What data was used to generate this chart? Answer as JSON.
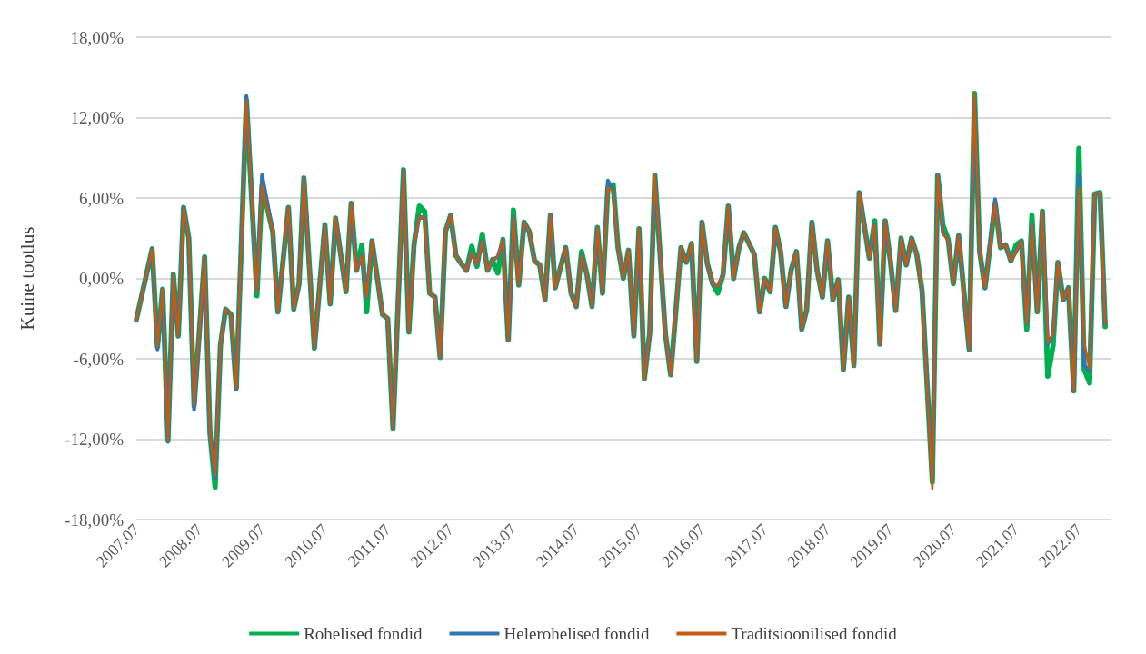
{
  "chart_data": {
    "type": "line",
    "ylabel": "Kuine tootlus",
    "x": [
      "2007-07",
      "2007-10",
      "2007-11",
      "2007-12",
      "2008-01",
      "2008-02",
      "2008-03",
      "2008-04",
      "2008-05",
      "2008-06",
      "2008-08",
      "2008-09",
      "2008-10",
      "2008-11",
      "2008-12",
      "2009-01",
      "2009-02",
      "2009-04",
      "2009-06",
      "2009-07",
      "2009-09",
      "2009-10",
      "2009-12",
      "2010-01",
      "2010-02",
      "2010-03",
      "2010-05",
      "2010-07",
      "2010-08",
      "2010-09",
      "2010-11",
      "2010-12",
      "2011-01",
      "2011-02",
      "2011-03",
      "2011-04",
      "2011-06",
      "2011-07",
      "2011-08",
      "2011-10",
      "2011-11",
      "2011-12",
      "2012-01",
      "2012-02",
      "2012-03",
      "2012-04",
      "2012-05",
      "2012-06",
      "2012-07",
      "2012-08",
      "2012-09",
      "2012-10",
      "2012-11",
      "2012-12",
      "2013-01",
      "2013-02",
      "2013-03",
      "2013-04",
      "2013-05",
      "2013-06",
      "2013-07",
      "2013-08",
      "2013-09",
      "2013-10",
      "2013-11",
      "2013-12",
      "2014-01",
      "2014-02",
      "2014-03",
      "2014-05",
      "2014-06",
      "2014-07",
      "2014-08",
      "2014-09",
      "2014-10",
      "2014-11",
      "2014-12",
      "2015-01",
      "2015-02",
      "2015-03",
      "2015-04",
      "2015-05",
      "2015-06",
      "2015-07",
      "2015-08",
      "2015-09",
      "2015-10",
      "2015-12",
      "2016-01",
      "2016-03",
      "2016-04",
      "2016-05",
      "2016-06",
      "2016-07",
      "2016-08",
      "2016-09",
      "2016-10",
      "2016-11",
      "2016-12",
      "2017-01",
      "2017-02",
      "2017-03",
      "2017-05",
      "2017-06",
      "2017-07",
      "2017-08",
      "2017-09",
      "2017-10",
      "2017-11",
      "2017-12",
      "2018-01",
      "2018-02",
      "2018-03",
      "2018-04",
      "2018-05",
      "2018-06",
      "2018-07",
      "2018-08",
      "2018-09",
      "2018-10",
      "2018-11",
      "2018-12",
      "2019-01",
      "2019-03",
      "2019-04",
      "2019-05",
      "2019-06",
      "2019-07",
      "2019-08",
      "2019-09",
      "2019-10",
      "2019-11",
      "2019-12",
      "2020-01",
      "2020-03",
      "2020-04",
      "2020-05",
      "2020-06",
      "2020-07",
      "2020-08",
      "2020-10",
      "2020-11",
      "2020-12",
      "2021-01",
      "2021-03",
      "2021-04",
      "2021-05",
      "2021-06",
      "2021-07",
      "2021-08",
      "2021-09",
      "2021-10",
      "2021-11",
      "2021-12",
      "2022-01",
      "2022-02",
      "2022-03",
      "2022-04",
      "2022-05",
      "2022-06",
      "2022-07",
      "2022-08",
      "2022-09",
      "2022-10",
      "2022-11",
      "2022-12"
    ],
    "series": [
      {
        "name": "Rohelised fondid",
        "color": "#00b050",
        "values": [
          -3.1,
          2.2,
          -5.1,
          -0.8,
          -12.1,
          0.3,
          -4.3,
          5.3,
          3.0,
          -9.5,
          1.6,
          -11.5,
          -15.6,
          -5.0,
          -2.3,
          -2.7,
          -8.2,
          13.3,
          -1.3,
          6.9,
          3.5,
          -2.5,
          5.3,
          -2.3,
          -0.4,
          7.5,
          -5.2,
          4.0,
          -1.9,
          4.5,
          -1.0,
          5.6,
          0.6,
          2.5,
          -2.5,
          2.8,
          -2.7,
          -3.0,
          -11.2,
          8.1,
          -4.0,
          2.5,
          5.4,
          5.0,
          -1.1,
          -1.4,
          -5.9,
          3.5,
          4.7,
          1.7,
          1.1,
          0.6,
          2.4,
          0.9,
          3.3,
          0.6,
          1.4,
          0.4,
          2.9,
          -4.6,
          5.1,
          -0.5,
          4.2,
          3.5,
          1.3,
          1.0,
          -1.6,
          4.7,
          -0.7,
          2.3,
          -1.1,
          -2.1,
          2.0,
          0.3,
          -2.1,
          3.8,
          -1.1,
          6.8,
          7.0,
          2.3,
          0.0,
          2.1,
          -4.3,
          3.7,
          -7.5,
          -4.1,
          7.7,
          -4.1,
          -7.2,
          2.3,
          1.2,
          2.6,
          -6.2,
          4.2,
          1.1,
          -0.4,
          -1.1,
          0.3,
          5.4,
          0.0,
          2.3,
          3.4,
          1.8,
          -2.5,
          0.0,
          -1.0,
          3.8,
          2.0,
          -2.1,
          0.6,
          2.0,
          -3.8,
          -2.4,
          4.2,
          0.6,
          -1.4,
          2.8,
          -1.6,
          -0.1,
          -6.8,
          -1.4,
          -6.5,
          6.4,
          1.5,
          4.3,
          -4.9,
          4.3,
          1.3,
          -2.4,
          3.0,
          1.0,
          3.0,
          1.8,
          -0.9,
          -15.2,
          7.7,
          4.0,
          2.9,
          -0.4,
          3.2,
          -5.3,
          13.8,
          2.0,
          -0.7,
          5.6,
          2.3,
          2.5,
          1.3,
          2.5,
          2.8,
          -3.8,
          4.7,
          -2.5,
          5.0,
          -7.3,
          -5.0,
          1.2,
          -1.6,
          -0.7,
          -8.4,
          9.7,
          -6.8,
          -7.8,
          6.3,
          6.4,
          -3.6
        ]
      },
      {
        "name": "Helerohelised fondid",
        "color": "#2e75b6",
        "values": [
          -3.1,
          2.2,
          -5.3,
          -0.8,
          -12.2,
          0.3,
          -4.3,
          5.3,
          3.0,
          -9.8,
          1.6,
          -11.5,
          -14.9,
          -5.0,
          -2.3,
          -2.7,
          -8.3,
          13.6,
          -1.0,
          7.7,
          3.5,
          -2.5,
          5.3,
          -2.3,
          -0.4,
          7.5,
          -5.2,
          4.0,
          -1.9,
          4.5,
          -1.0,
          5.6,
          0.6,
          1.7,
          -1.4,
          2.8,
          -2.7,
          -3.0,
          -11.2,
          8.1,
          -4.0,
          2.5,
          4.6,
          4.5,
          -1.1,
          -1.4,
          -5.9,
          3.5,
          4.7,
          1.7,
          1.1,
          0.6,
          1.9,
          1.1,
          2.8,
          0.6,
          1.4,
          1.6,
          2.9,
          -4.6,
          4.6,
          -0.5,
          4.2,
          3.5,
          1.3,
          1.0,
          -1.6,
          4.7,
          -0.7,
          2.3,
          -1.1,
          -2.1,
          1.7,
          0.3,
          -2.1,
          3.8,
          -1.1,
          7.3,
          6.5,
          2.3,
          0.0,
          2.1,
          -4.3,
          3.7,
          -7.5,
          -4.1,
          7.7,
          -4.1,
          -7.2,
          2.3,
          1.2,
          2.6,
          -6.2,
          4.2,
          1.1,
          -0.4,
          -0.6,
          0.3,
          5.4,
          0.0,
          2.3,
          3.4,
          1.8,
          -2.5,
          0.0,
          -1.0,
          3.8,
          2.0,
          -2.1,
          0.6,
          2.0,
          -3.8,
          -2.4,
          4.2,
          0.6,
          -1.4,
          2.8,
          -1.6,
          -0.1,
          -6.8,
          -1.4,
          -6.5,
          6.4,
          1.5,
          4.0,
          -4.9,
          4.3,
          1.3,
          -2.4,
          3.0,
          1.0,
          3.0,
          1.8,
          -0.9,
          -15.0,
          7.7,
          3.4,
          2.9,
          -0.4,
          3.2,
          -5.3,
          13.3,
          2.0,
          -0.7,
          5.9,
          2.3,
          2.5,
          1.3,
          2.0,
          2.8,
          -3.4,
          4.0,
          -2.5,
          5.0,
          -4.9,
          -4.2,
          1.2,
          -1.6,
          -0.7,
          -8.4,
          7.7,
          -6.5,
          -6.9,
          6.3,
          6.4,
          -3.4
        ]
      },
      {
        "name": "Traditsioonilised fondid",
        "color": "#c55a11",
        "values": [
          -3.1,
          2.2,
          -5.1,
          -0.8,
          -12.1,
          0.3,
          -4.3,
          5.3,
          3.0,
          -9.5,
          1.6,
          -11.5,
          -14.7,
          -5.0,
          -2.3,
          -2.7,
          -8.2,
          13.3,
          -1.0,
          6.9,
          3.5,
          -2.5,
          5.3,
          -2.3,
          -0.4,
          7.5,
          -5.2,
          4.0,
          -1.9,
          4.5,
          -1.0,
          5.6,
          0.6,
          1.7,
          -1.4,
          2.8,
          -2.7,
          -3.0,
          -11.2,
          8.1,
          -4.0,
          2.5,
          4.6,
          4.5,
          -1.1,
          -1.4,
          -5.9,
          3.5,
          4.7,
          1.7,
          1.1,
          0.6,
          1.9,
          1.1,
          2.8,
          0.6,
          1.4,
          1.6,
          2.9,
          -4.6,
          4.6,
          -0.5,
          4.2,
          3.5,
          1.3,
          1.0,
          -1.6,
          4.7,
          -0.7,
          2.3,
          -1.1,
          -2.1,
          1.7,
          0.3,
          -2.1,
          3.8,
          -1.1,
          6.8,
          6.5,
          2.3,
          0.0,
          2.1,
          -4.3,
          3.7,
          -7.5,
          -4.1,
          7.7,
          -4.1,
          -7.2,
          2.3,
          1.2,
          2.6,
          -6.2,
          4.2,
          1.1,
          -0.4,
          -0.6,
          0.3,
          5.4,
          0.0,
          2.3,
          3.4,
          1.8,
          -2.5,
          0.0,
          -1.0,
          3.8,
          2.0,
          -2.1,
          0.6,
          2.0,
          -3.8,
          -2.4,
          4.2,
          0.6,
          -1.4,
          2.8,
          -1.6,
          -0.1,
          -6.8,
          -1.4,
          -6.5,
          6.4,
          1.5,
          4.0,
          -4.9,
          4.3,
          1.3,
          -2.4,
          3.0,
          1.0,
          3.0,
          1.8,
          -0.9,
          -15.7,
          7.7,
          3.4,
          2.9,
          -0.4,
          3.2,
          -5.3,
          13.8,
          2.0,
          -0.7,
          5.6,
          2.3,
          2.5,
          1.3,
          2.0,
          2.8,
          -3.4,
          4.0,
          -2.5,
          5.0,
          -4.8,
          -4.2,
          1.2,
          -1.6,
          -0.7,
          -8.4,
          6.7,
          -4.8,
          -6.7,
          6.3,
          6.4,
          -3.4
        ]
      }
    ],
    "xlim": [
      "2007-07",
      "2023-01"
    ],
    "xticks": [
      {
        "value": "2007-07",
        "label": "2007.07"
      },
      {
        "value": "2008-07",
        "label": "2008.07"
      },
      {
        "value": "2009-07",
        "label": "2009.07"
      },
      {
        "value": "2010-07",
        "label": "2010.07"
      },
      {
        "value": "2011-07",
        "label": "2011.07"
      },
      {
        "value": "2012-07",
        "label": "2012.07"
      },
      {
        "value": "2013-07",
        "label": "2013.07"
      },
      {
        "value": "2014-07",
        "label": "2014.07"
      },
      {
        "value": "2015-07",
        "label": "2015.07"
      },
      {
        "value": "2016-07",
        "label": "2016.07"
      },
      {
        "value": "2017-07",
        "label": "2017.07"
      },
      {
        "value": "2018-07",
        "label": "2018.07"
      },
      {
        "value": "2019-07",
        "label": "2019.07"
      },
      {
        "value": "2020-07",
        "label": "2020.07"
      },
      {
        "value": "2021-07",
        "label": "2021.07"
      },
      {
        "value": "2022-07",
        "label": "2022.07"
      }
    ],
    "ylim": [
      -18,
      18
    ],
    "yticks": [
      {
        "value": -18,
        "label": "-18,00%"
      },
      {
        "value": -12,
        "label": "-12,00%"
      },
      {
        "value": -6,
        "label": "-6,00%"
      },
      {
        "value": 0,
        "label": "0,00%"
      },
      {
        "value": 6,
        "label": "6,00%"
      },
      {
        "value": 12,
        "label": "12,00%"
      },
      {
        "value": 18,
        "label": "18,00%"
      }
    ],
    "grid": "y",
    "legend": "bottom",
    "marker": "none",
    "line_style": "solid"
  }
}
